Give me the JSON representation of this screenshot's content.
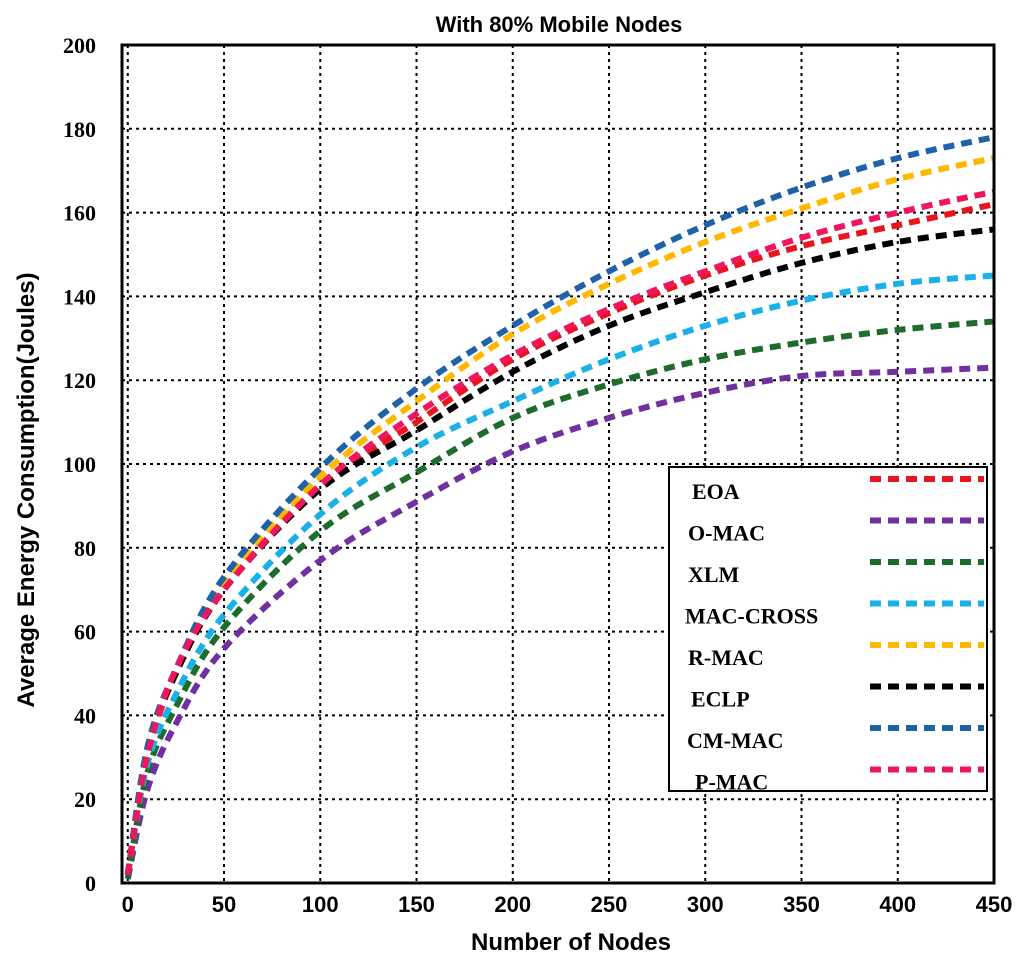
{
  "chart_data": {
    "type": "line",
    "title": "With 80% Mobile Nodes",
    "xlabel": "Number of Nodes",
    "ylabel": "Average Energy Consumption(Joules)",
    "xlim": [
      -3,
      450
    ],
    "ylim": [
      0,
      200
    ],
    "xticks": [
      "0",
      "50",
      "100",
      "150",
      "200",
      "250",
      "300",
      "350",
      "400",
      "450"
    ],
    "yticks": [
      "0",
      "20",
      "40",
      "60",
      "80",
      "100",
      "120",
      "140",
      "160",
      "180",
      "200"
    ],
    "grid": true,
    "legend_position": "right",
    "x": [
      0,
      10,
      25,
      50,
      100,
      150,
      200,
      250,
      300,
      350,
      400,
      450
    ],
    "series": [
      {
        "name": "EOA",
        "color": "#e8161c",
        "values": [
          2,
          30,
          50,
          70,
          95,
          110,
          125,
          136,
          145,
          152,
          157,
          162
        ]
      },
      {
        "name": "O-MAC",
        "color": "#7030a0",
        "values": [
          1,
          22,
          38,
          56,
          77,
          91,
          103,
          111,
          117,
          121,
          122,
          123
        ]
      },
      {
        "name": "XLM",
        "color": "#1e6b2e",
        "values": [
          1,
          26,
          42,
          61,
          84,
          98,
          111,
          119,
          125,
          129,
          132,
          134
        ]
      },
      {
        "name": "MAC-CROSS",
        "color": "#1ab0e8",
        "values": [
          2,
          28,
          45,
          64,
          88,
          104,
          115,
          125,
          133,
          139,
          143,
          145
        ]
      },
      {
        "name": "R-MAC",
        "color": "#ffb800",
        "values": [
          2,
          31,
          50,
          72,
          97,
          115,
          131,
          143,
          153,
          161,
          168,
          173
        ]
      },
      {
        "name": "ECLP",
        "color": "#000000",
        "values": [
          2,
          31,
          50,
          70,
          94,
          108,
          122,
          133,
          141,
          148,
          153,
          156
        ]
      },
      {
        "name": "CM-MAC",
        "color": "#1f62a8",
        "values": [
          2,
          32,
          51,
          73,
          99,
          118,
          133,
          146,
          157,
          166,
          173,
          178
        ]
      },
      {
        "name": "P-MAC",
        "color": "#f0165e",
        "values": [
          2,
          30,
          51,
          70,
          95,
          112,
          126,
          137,
          146,
          154,
          160,
          165
        ]
      }
    ]
  }
}
